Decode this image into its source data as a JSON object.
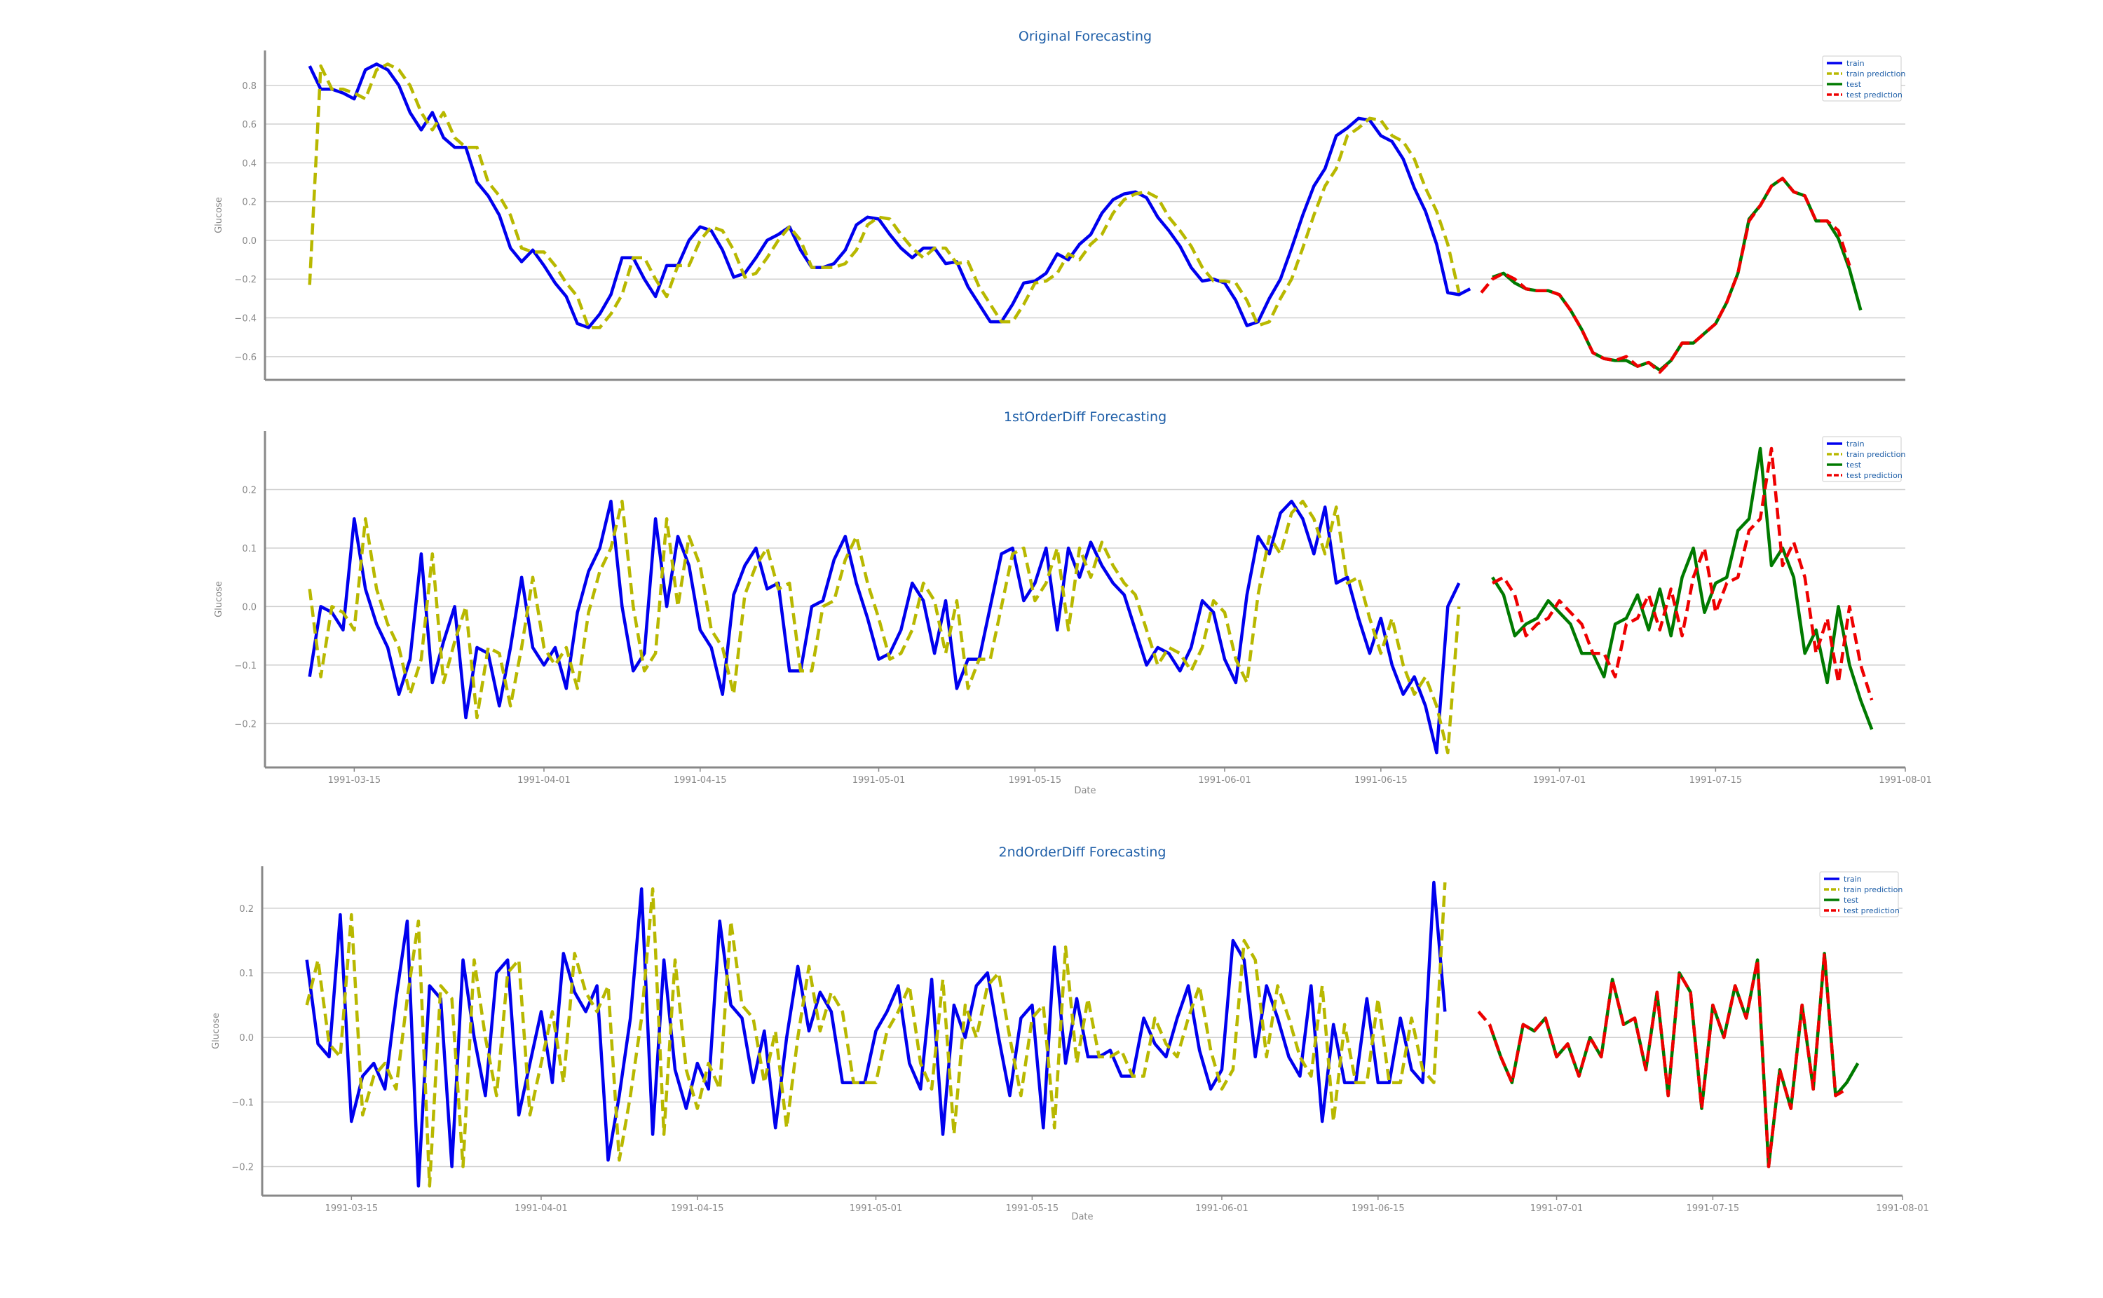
{
  "colors": {
    "train": "#0000ee",
    "train_prediction": "#b8b800",
    "test": "#007a00",
    "test_prediction": "#ee0000",
    "grid": "#d0d0d0",
    "axis": "#888888",
    "title": "#1f5fa8"
  },
  "date_axis": {
    "start": "1991-03-07",
    "end": "1991-08-01",
    "tick_labels": [
      "1991-03-15",
      "1991-04-01",
      "1991-04-15",
      "1991-05-01",
      "1991-05-15",
      "1991-06-01",
      "1991-06-15",
      "1991-07-01",
      "1991-07-15",
      "1991-08-01"
    ]
  },
  "chart_data": [
    {
      "type": "line",
      "title": "Original Forecasting",
      "xlabel": "",
      "ylabel": "Glucose",
      "ylim": [
        -0.72,
        0.98
      ],
      "yticks": [
        -0.6,
        -0.4,
        -0.2,
        0.0,
        0.2,
        0.4,
        0.6,
        0.8
      ],
      "yticklabels": [
        "−0.6",
        "−0.4",
        "−0.2",
        "0.0",
        "0.2",
        "0.4",
        "0.6",
        "0.8"
      ],
      "show_xticks": false,
      "grid": true,
      "legend": "top-right",
      "legend_labels": [
        "train",
        "train prediction",
        "test",
        "test prediction"
      ],
      "train_start": "1991-03-11",
      "test_start": "1991-06-25",
      "series": [
        {
          "name": "train",
          "start": "1991-03-11",
          "style": "solid",
          "values": [
            0.9,
            0.78,
            0.78,
            0.76,
            0.73,
            0.88,
            0.91,
            0.88,
            0.8,
            0.66,
            0.57,
            0.66,
            0.53,
            0.48,
            0.48,
            0.3,
            0.23,
            0.13,
            -0.04,
            -0.11,
            -0.05,
            -0.13,
            -0.22,
            -0.29,
            -0.43,
            -0.45,
            -0.38,
            -0.28,
            -0.09,
            -0.09,
            -0.2,
            -0.29,
            -0.13,
            -0.13,
            0.0,
            0.07,
            0.05,
            -0.05,
            -0.19,
            -0.17,
            -0.09,
            0.0,
            0.03,
            0.07,
            -0.05,
            -0.14,
            -0.14,
            -0.12,
            -0.05,
            0.08,
            0.12,
            0.11,
            0.03,
            -0.04,
            -0.09,
            -0.04,
            -0.04,
            -0.12,
            -0.11,
            -0.24,
            -0.33,
            -0.42,
            -0.42,
            -0.33,
            -0.22,
            -0.21,
            -0.17,
            -0.07,
            -0.1,
            -0.02,
            0.03,
            0.14,
            0.21,
            0.24,
            0.25,
            0.22,
            0.12,
            0.05,
            -0.03,
            -0.14,
            -0.21,
            -0.2,
            -0.22,
            -0.31,
            -0.44,
            -0.42,
            -0.3,
            -0.2,
            -0.04,
            0.13,
            0.28,
            0.37,
            0.54,
            0.58,
            0.63,
            0.62,
            0.54,
            0.51,
            0.42,
            0.27,
            0.15,
            -0.02,
            -0.27,
            -0.28,
            -0.25
          ]
        },
        {
          "name": "train prediction",
          "start": "1991-03-11",
          "style": "dashed",
          "values": [
            -0.23,
            0.9,
            0.78,
            0.78,
            0.76,
            0.73,
            0.88,
            0.91,
            0.88,
            0.8,
            0.66,
            0.57,
            0.66,
            0.53,
            0.48,
            0.48,
            0.3,
            0.23,
            0.13,
            -0.04,
            -0.06,
            -0.06,
            -0.13,
            -0.22,
            -0.29,
            -0.45,
            -0.45,
            -0.38,
            -0.28,
            -0.09,
            -0.09,
            -0.2,
            -0.29,
            -0.13,
            -0.13,
            0.0,
            0.07,
            0.05,
            -0.05,
            -0.19,
            -0.17,
            -0.09,
            0.0,
            0.07,
            0.0,
            -0.14,
            -0.14,
            -0.14,
            -0.12,
            -0.05,
            0.08,
            0.12,
            0.11,
            0.03,
            -0.04,
            -0.09,
            -0.04,
            -0.04,
            -0.12,
            -0.11,
            -0.24,
            -0.33,
            -0.42,
            -0.42,
            -0.33,
            -0.22,
            -0.21,
            -0.17,
            -0.07,
            -0.1,
            -0.02,
            0.03,
            0.14,
            0.21,
            0.24,
            0.25,
            0.22,
            0.12,
            0.05,
            -0.03,
            -0.14,
            -0.21,
            -0.21,
            -0.22,
            -0.31,
            -0.44,
            -0.42,
            -0.3,
            -0.2,
            -0.04,
            0.13,
            0.28,
            0.37,
            0.54,
            0.58,
            0.63,
            0.62,
            0.54,
            0.51,
            0.42,
            0.27,
            0.15,
            -0.02,
            -0.27
          ]
        },
        {
          "name": "test",
          "start": "1991-06-25",
          "style": "solid",
          "values": [
            -0.19,
            -0.17,
            -0.22,
            -0.25,
            -0.26,
            -0.26,
            -0.28,
            -0.36,
            -0.46,
            -0.58,
            -0.61,
            -0.62,
            -0.62,
            -0.65,
            -0.63,
            -0.67,
            -0.62,
            -0.53,
            -0.53,
            -0.48,
            -0.43,
            -0.32,
            -0.17,
            0.11,
            0.18,
            0.28,
            0.32,
            0.25,
            0.23,
            0.1,
            0.1,
            0.01,
            -0.15,
            -0.36
          ]
        },
        {
          "name": "test prediction",
          "start": "1991-06-24",
          "style": "dashed",
          "values": [
            -0.27,
            -0.2,
            -0.17,
            -0.2,
            -0.25,
            -0.26,
            -0.26,
            -0.28,
            -0.36,
            -0.46,
            -0.58,
            -0.61,
            -0.62,
            -0.6,
            -0.65,
            -0.63,
            -0.68,
            -0.62,
            -0.53,
            -0.53,
            -0.48,
            -0.43,
            -0.32,
            -0.17,
            0.1,
            0.18,
            0.28,
            0.32,
            0.25,
            0.23,
            0.1,
            0.1,
            0.05,
            -0.13
          ]
        }
      ]
    },
    {
      "type": "line",
      "title": "1stOrderDiff Forecasting",
      "xlabel": "Date",
      "ylabel": "Glucose",
      "ylim": [
        -0.275,
        0.3
      ],
      "yticks": [
        -0.2,
        -0.1,
        0.0,
        0.1,
        0.2
      ],
      "yticklabels": [
        "−0.2",
        "−0.1",
        "0.0",
        "0.1",
        "0.2"
      ],
      "show_xticks": true,
      "grid": true,
      "legend": "top-right",
      "legend_labels": [
        "train",
        "train prediction",
        "test",
        "test prediction"
      ],
      "train_start": "1991-03-11",
      "test_start": "1991-06-25",
      "series": [
        {
          "name": "train",
          "start": "1991-03-11",
          "style": "solid",
          "values": [
            -0.12,
            0.0,
            -0.01,
            -0.04,
            0.15,
            0.03,
            -0.03,
            -0.07,
            -0.15,
            -0.09,
            0.09,
            -0.13,
            -0.06,
            0.0,
            -0.19,
            -0.07,
            -0.08,
            -0.17,
            -0.07,
            0.05,
            -0.07,
            -0.1,
            -0.07,
            -0.14,
            -0.01,
            0.06,
            0.1,
            0.18,
            0.0,
            -0.11,
            -0.08,
            0.15,
            0.0,
            0.12,
            0.07,
            -0.04,
            -0.07,
            -0.15,
            0.02,
            0.07,
            0.1,
            0.03,
            0.04,
            -0.11,
            -0.11,
            0.0,
            0.01,
            0.08,
            0.12,
            0.04,
            -0.02,
            -0.09,
            -0.08,
            -0.04,
            0.04,
            0.01,
            -0.08,
            0.01,
            -0.14,
            -0.09,
            -0.09,
            0.0,
            0.09,
            0.1,
            0.01,
            0.04,
            0.1,
            -0.04,
            0.1,
            0.05,
            0.11,
            0.07,
            0.04,
            0.02,
            -0.04,
            -0.1,
            -0.07,
            -0.08,
            -0.11,
            -0.07,
            0.01,
            -0.01,
            -0.09,
            -0.13,
            0.02,
            0.12,
            0.09,
            0.16,
            0.18,
            0.15,
            0.09,
            0.17,
            0.04,
            0.05,
            -0.02,
            -0.08,
            -0.02,
            -0.1,
            -0.15,
            -0.12,
            -0.17,
            -0.25,
            0.0,
            0.04
          ]
        },
        {
          "name": "train prediction",
          "start": "1991-03-11",
          "style": "dashed",
          "values": [
            0.03,
            -0.12,
            0.0,
            -0.01,
            -0.04,
            0.15,
            0.03,
            -0.03,
            -0.07,
            -0.15,
            -0.09,
            0.09,
            -0.13,
            -0.06,
            0.0,
            -0.19,
            -0.07,
            -0.08,
            -0.17,
            -0.07,
            0.05,
            -0.07,
            -0.1,
            -0.07,
            -0.14,
            -0.01,
            0.06,
            0.1,
            0.18,
            0.0,
            -0.11,
            -0.08,
            0.15,
            0.0,
            0.12,
            0.07,
            -0.04,
            -0.07,
            -0.15,
            0.02,
            0.07,
            0.1,
            0.03,
            0.04,
            -0.11,
            -0.11,
            0.0,
            0.01,
            0.08,
            0.12,
            0.04,
            -0.02,
            -0.09,
            -0.08,
            -0.04,
            0.04,
            0.01,
            -0.08,
            0.01,
            -0.14,
            -0.09,
            -0.09,
            0.0,
            0.09,
            0.1,
            0.01,
            0.04,
            0.1,
            -0.04,
            0.1,
            0.05,
            0.11,
            0.07,
            0.04,
            0.02,
            -0.04,
            -0.1,
            -0.07,
            -0.08,
            -0.11,
            -0.07,
            0.01,
            -0.01,
            -0.09,
            -0.13,
            0.02,
            0.12,
            0.09,
            0.16,
            0.18,
            0.15,
            0.09,
            0.17,
            0.04,
            0.05,
            -0.02,
            -0.08,
            -0.02,
            -0.1,
            -0.15,
            -0.12,
            -0.17,
            -0.25,
            0.0
          ]
        },
        {
          "name": "test",
          "start": "1991-06-25",
          "style": "solid",
          "values": [
            0.05,
            0.02,
            -0.05,
            -0.03,
            -0.02,
            0.01,
            -0.01,
            -0.03,
            -0.08,
            -0.08,
            -0.12,
            -0.03,
            -0.02,
            0.02,
            -0.04,
            0.03,
            -0.05,
            0.05,
            0.1,
            -0.01,
            0.04,
            0.05,
            0.13,
            0.15,
            0.27,
            0.07,
            0.1,
            0.05,
            -0.08,
            -0.04,
            -0.13,
            0.0,
            -0.1,
            -0.16,
            -0.21
          ]
        },
        {
          "name": "test prediction",
          "start": "1991-06-25",
          "style": "dashed",
          "values": [
            0.04,
            0.05,
            0.02,
            -0.05,
            -0.03,
            -0.02,
            0.01,
            -0.01,
            -0.03,
            -0.08,
            -0.08,
            -0.12,
            -0.03,
            -0.02,
            0.02,
            -0.04,
            0.03,
            -0.05,
            0.05,
            0.1,
            -0.01,
            0.04,
            0.05,
            0.13,
            0.15,
            0.27,
            0.07,
            0.11,
            0.05,
            -0.08,
            -0.02,
            -0.13,
            0.0,
            -0.1,
            -0.16
          ]
        }
      ]
    },
    {
      "type": "line",
      "title": "2ndOrderDiff Forecasting",
      "xlabel": "Date",
      "ylabel": "Glucose",
      "ylim": [
        -0.245,
        0.265
      ],
      "yticks": [
        -0.2,
        -0.1,
        0.0,
        0.1,
        0.2
      ],
      "yticklabels": [
        "−0.2",
        "−0.1",
        "0.0",
        "0.1",
        "0.2"
      ],
      "show_xticks": true,
      "grid": true,
      "legend": "top-right",
      "legend_labels": [
        "train",
        "train prediction",
        "test",
        "test prediction"
      ],
      "train_start": "1991-03-11",
      "test_start": "1991-06-25",
      "series": [
        {
          "name": "train",
          "start": "1991-03-11",
          "style": "solid",
          "values": [
            0.12,
            -0.01,
            -0.03,
            0.19,
            -0.13,
            -0.06,
            -0.04,
            -0.08,
            0.06,
            0.18,
            -0.23,
            0.08,
            0.06,
            -0.2,
            0.12,
            0.0,
            -0.09,
            0.1,
            0.12,
            -0.12,
            -0.04,
            0.04,
            -0.07,
            0.13,
            0.07,
            0.04,
            0.08,
            -0.19,
            -0.09,
            0.03,
            0.23,
            -0.15,
            0.12,
            -0.05,
            -0.11,
            -0.04,
            -0.08,
            0.18,
            0.05,
            0.03,
            -0.07,
            0.01,
            -0.14,
            0.0,
            0.11,
            0.01,
            0.07,
            0.04,
            -0.07,
            -0.07,
            -0.07,
            0.01,
            0.04,
            0.08,
            -0.04,
            -0.08,
            0.09,
            -0.15,
            0.05,
            0.0,
            0.08,
            0.1,
            0.0,
            -0.09,
            0.03,
            0.05,
            -0.14,
            0.14,
            -0.04,
            0.06,
            -0.03,
            -0.03,
            -0.02,
            -0.06,
            -0.06,
            0.03,
            -0.01,
            -0.03,
            0.03,
            0.08,
            -0.02,
            -0.08,
            -0.05,
            0.15,
            0.12,
            -0.03,
            0.08,
            0.03,
            -0.03,
            -0.06,
            0.08,
            -0.13,
            0.02,
            -0.07,
            -0.07,
            0.06,
            -0.07,
            -0.07,
            0.03,
            -0.05,
            -0.07,
            0.24,
            0.04
          ]
        },
        {
          "name": "train prediction",
          "start": "1991-03-11",
          "style": "dashed",
          "values": [
            0.05,
            0.12,
            -0.01,
            -0.03,
            0.19,
            -0.12,
            -0.06,
            -0.04,
            -0.08,
            0.06,
            0.18,
            -0.23,
            0.08,
            0.06,
            -0.2,
            0.12,
            0.0,
            -0.09,
            0.1,
            0.12,
            -0.12,
            -0.04,
            0.04,
            -0.07,
            0.13,
            0.07,
            0.04,
            0.08,
            -0.19,
            -0.09,
            0.03,
            0.23,
            -0.15,
            0.12,
            -0.05,
            -0.11,
            -0.04,
            -0.08,
            0.18,
            0.05,
            0.03,
            -0.07,
            0.01,
            -0.14,
            0.0,
            0.11,
            0.01,
            0.07,
            0.04,
            -0.07,
            -0.07,
            -0.07,
            0.01,
            0.04,
            0.08,
            -0.04,
            -0.08,
            0.09,
            -0.15,
            0.05,
            0.0,
            0.08,
            0.1,
            0.0,
            -0.09,
            0.03,
            0.05,
            -0.14,
            0.14,
            -0.04,
            0.06,
            -0.03,
            -0.03,
            -0.02,
            -0.06,
            -0.06,
            0.03,
            -0.01,
            -0.03,
            0.03,
            0.08,
            -0.02,
            -0.08,
            -0.05,
            0.15,
            0.12,
            -0.03,
            0.08,
            0.03,
            -0.03,
            -0.06,
            0.08,
            -0.13,
            0.02,
            -0.07,
            -0.07,
            0.06,
            -0.07,
            -0.07,
            0.03,
            -0.05,
            -0.07,
            0.24
          ]
        },
        {
          "name": "test",
          "start": "1991-06-25",
          "style": "solid",
          "values": [
            0.02,
            -0.03,
            -0.07,
            0.02,
            0.01,
            0.03,
            -0.03,
            -0.01,
            -0.06,
            0.0,
            -0.03,
            0.09,
            0.02,
            0.03,
            -0.05,
            0.07,
            -0.09,
            0.1,
            0.07,
            -0.11,
            0.05,
            0.0,
            0.08,
            0.03,
            0.12,
            -0.2,
            -0.05,
            -0.11,
            0.05,
            -0.08,
            0.13,
            -0.09,
            -0.07,
            -0.04
          ]
        },
        {
          "name": "test prediction",
          "start": "1991-06-24",
          "style": "dashed",
          "values": [
            0.04,
            0.02,
            -0.03,
            -0.07,
            0.02,
            0.01,
            0.03,
            -0.03,
            -0.01,
            -0.06,
            0.0,
            -0.03,
            0.09,
            0.02,
            0.03,
            -0.05,
            0.07,
            -0.09,
            0.1,
            0.07,
            -0.11,
            0.05,
            0.0,
            0.08,
            0.03,
            0.12,
            -0.2,
            -0.05,
            -0.11,
            0.05,
            -0.08,
            0.13,
            -0.09,
            -0.08
          ]
        }
      ]
    }
  ]
}
